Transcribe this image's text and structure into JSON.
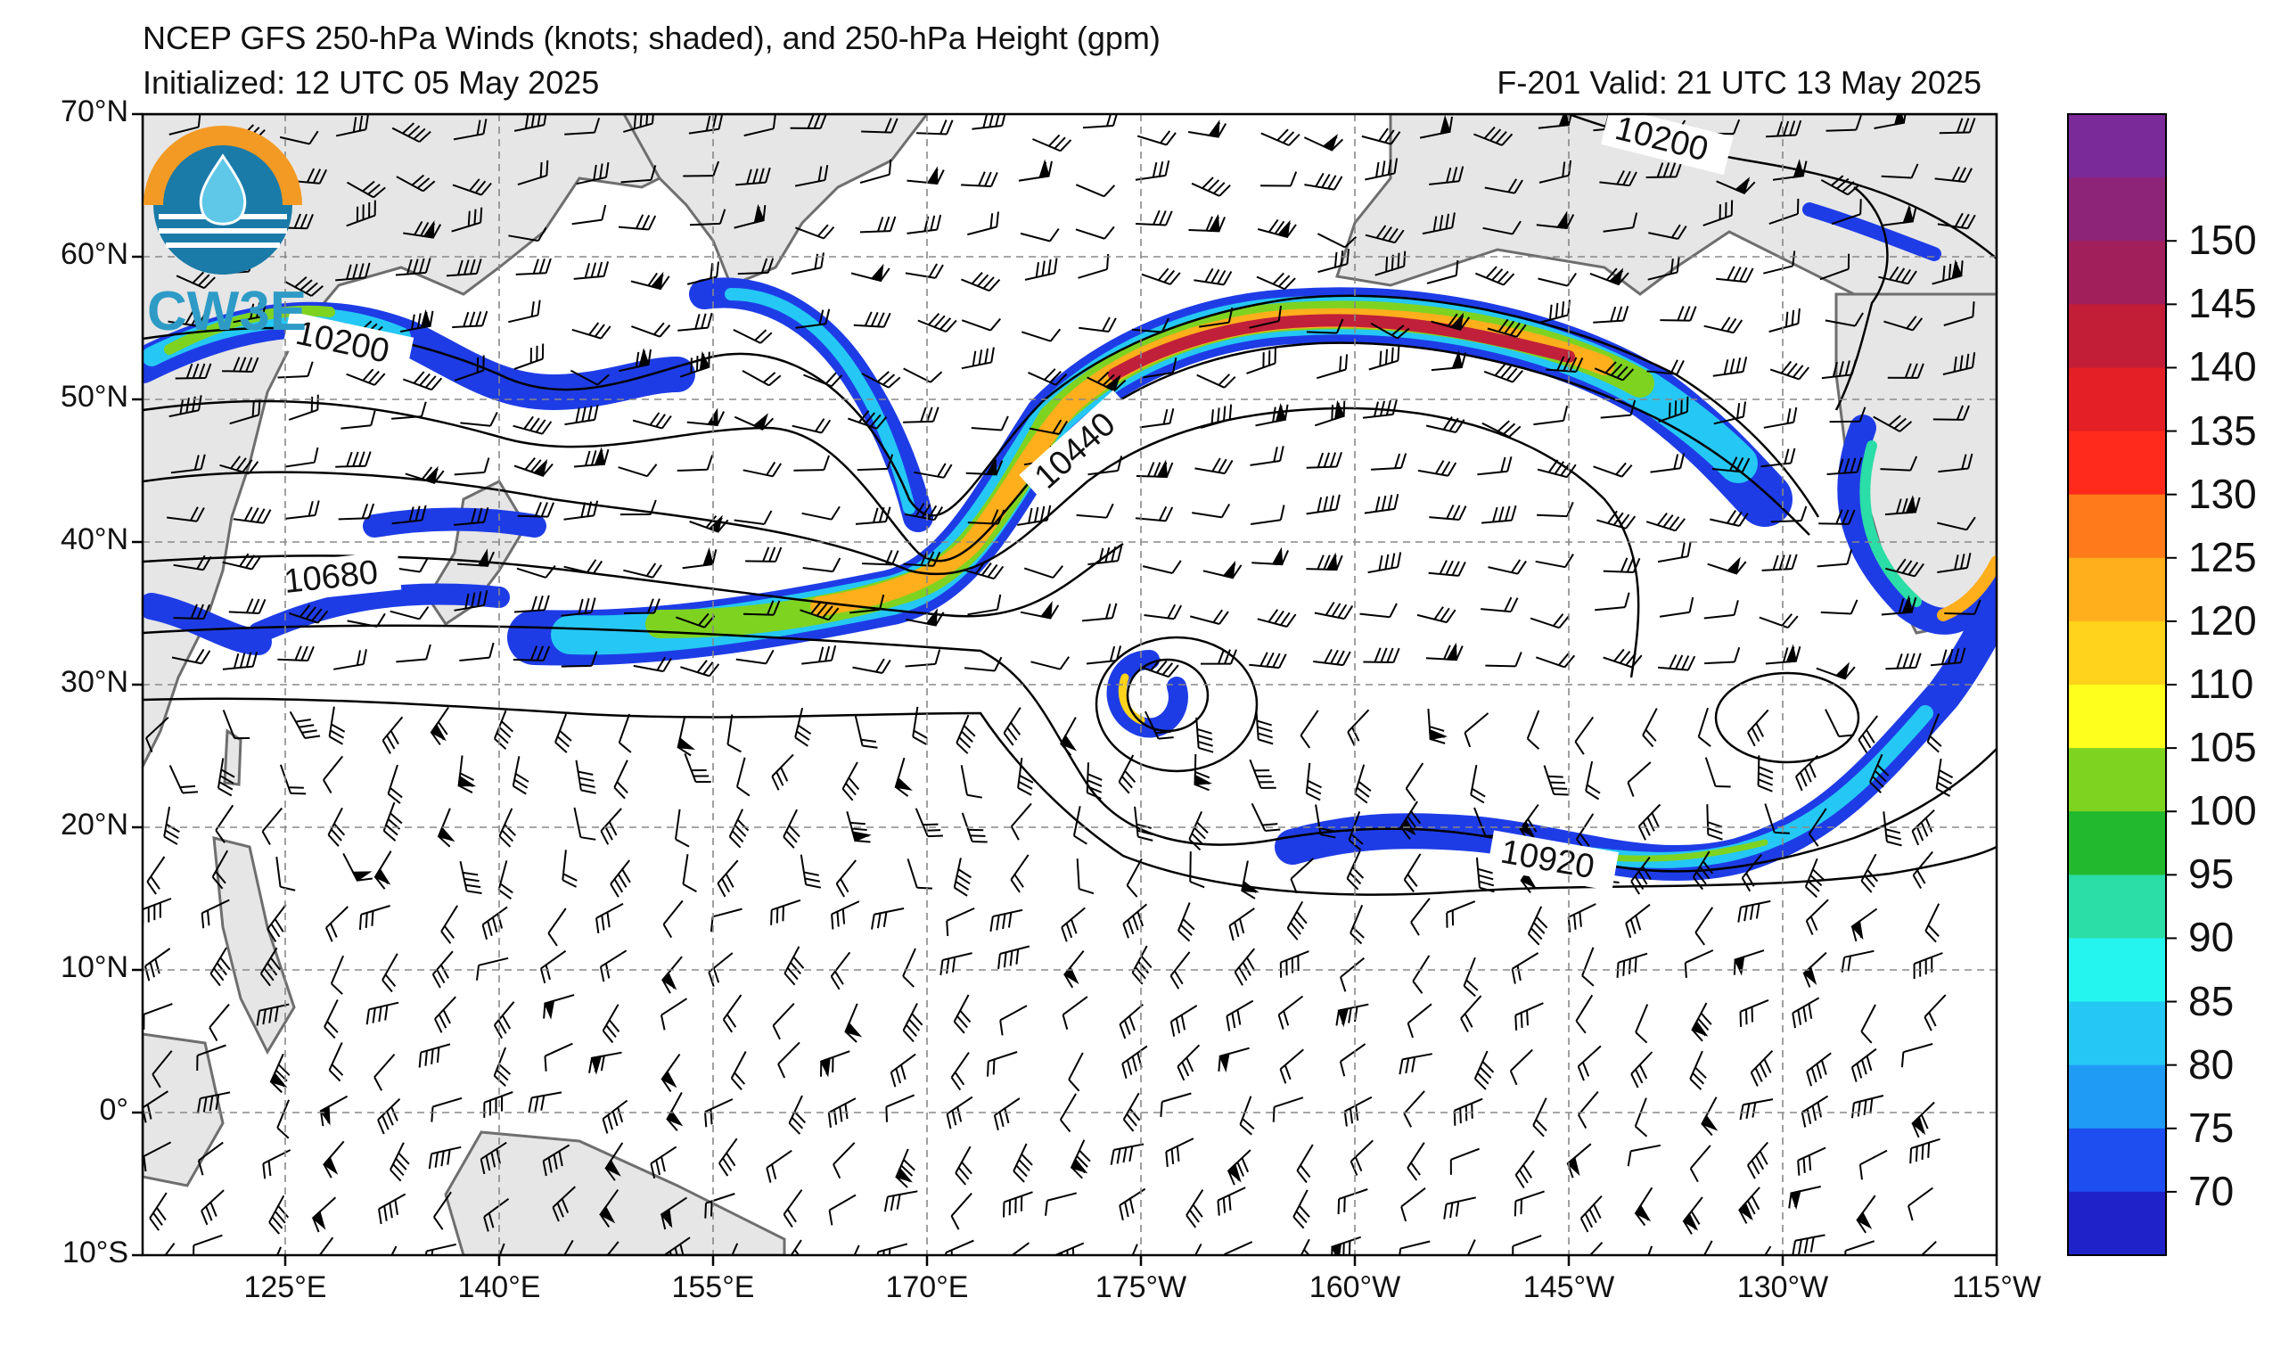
{
  "header": {
    "title": "NCEP GFS 250-hPa Winds (knots; shaded), and 250-hPa Height (gpm)",
    "initialized": "Initialized: 12 UTC 05 May 2025",
    "valid": "F-201  Valid: 21 UTC 13 May 2025"
  },
  "map": {
    "lat_labels": [
      "70°N",
      "60°N",
      "50°N",
      "40°N",
      "30°N",
      "20°N",
      "10°N",
      "0°",
      "10°S"
    ],
    "lon_labels": [
      "125°E",
      "140°E",
      "155°E",
      "170°E",
      "175°W",
      "160°W",
      "145°W",
      "130°W",
      "115°W"
    ],
    "contour_labels": [
      "10200",
      "10200",
      "10440",
      "10680",
      "10920"
    ]
  },
  "logo": {
    "text": "CW3E"
  },
  "colorbar": {
    "labels": [
      "150",
      "145",
      "140",
      "135",
      "130",
      "125",
      "120",
      "110",
      "105",
      "100",
      "95",
      "90",
      "85",
      "80",
      "75",
      "70"
    ],
    "colors": [
      "#7B2A9A",
      "#8E2478",
      "#A11F5A",
      "#C21E38",
      "#E41F26",
      "#FF2A1B",
      "#FF7A1A",
      "#FFAE1C",
      "#FFD31B",
      "#FFFF1E",
      "#7ED321",
      "#23B92E",
      "#2BDDA6",
      "#25F5EF",
      "#25C8F5",
      "#1F9BF5",
      "#1E4DF0",
      "#1F22C8"
    ]
  },
  "colors": {
    "land": "#e6e6e6",
    "coast": "#6e6e6e",
    "jet_outer": "#1E3CE6",
    "jet_core": "#C0203A"
  }
}
